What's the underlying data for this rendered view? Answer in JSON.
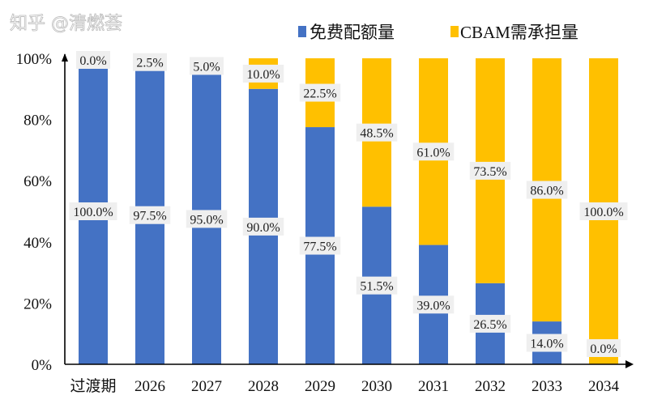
{
  "chart_data": {
    "type": "bar",
    "stacked": true,
    "categories": [
      "过渡期",
      "2026",
      "2027",
      "2028",
      "2029",
      "2030",
      "2031",
      "2032",
      "2033",
      "2034"
    ],
    "series": [
      {
        "name": "免费配额量",
        "color": "#4472C4",
        "values": [
          100.0,
          97.5,
          95.0,
          90.0,
          77.5,
          51.5,
          39.0,
          26.5,
          14.0,
          0.0
        ]
      },
      {
        "name": "CBAM需承担量",
        "color": "#FFC000",
        "values": [
          0.0,
          2.5,
          5.0,
          10.0,
          22.5,
          48.5,
          61.0,
          73.5,
          86.0,
          100.0
        ]
      }
    ],
    "data_labels": {
      "blue": [
        "100.0%",
        "97.5%",
        "95.0%",
        "90.0%",
        "77.5%",
        "51.5%",
        "39.0%",
        "26.5%",
        "14.0%",
        "0.0%"
      ],
      "yellow": [
        "0.0%",
        "2.5%",
        "5.0%",
        "10.0%",
        "22.5%",
        "48.5%",
        "61.0%",
        "73.5%",
        "86.0%",
        "100.0%"
      ]
    },
    "yticks": [
      "0%",
      "20%",
      "40%",
      "60%",
      "80%",
      "100%"
    ],
    "ylim": [
      0,
      100
    ],
    "legend_position": "top-right",
    "grid": false
  },
  "watermark": "知乎 @清燃荟"
}
